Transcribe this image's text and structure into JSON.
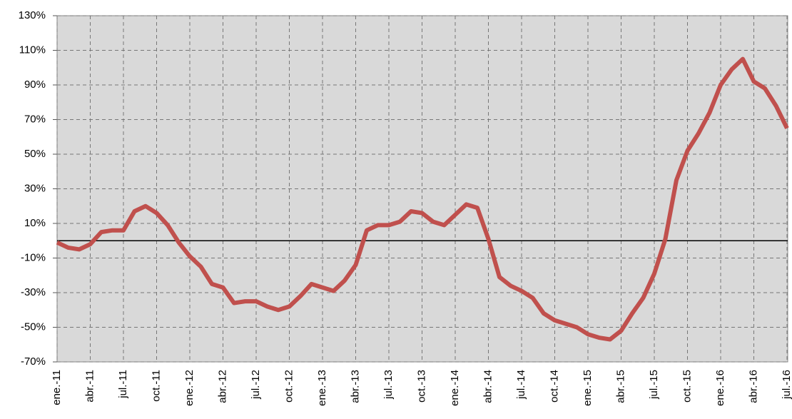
{
  "chart_data": {
    "type": "line",
    "categories": [
      "ene.-11",
      null,
      null,
      "abr.-11",
      null,
      null,
      "jul.-11",
      null,
      null,
      "oct.-11",
      null,
      null,
      "ene.-12",
      null,
      null,
      "abr.-12",
      null,
      null,
      "jul.-12",
      null,
      null,
      "oct.-12",
      null,
      null,
      "ene.-13",
      null,
      null,
      "abr.-13",
      null,
      null,
      "jul.-13",
      null,
      null,
      "oct.-13",
      null,
      null,
      "ene.-14",
      null,
      null,
      "abr.-14",
      null,
      null,
      "jul.-14",
      null,
      null,
      "oct.-14",
      null,
      null,
      "ene.-15",
      null,
      null,
      "abr.-15",
      null,
      null,
      "jul.-15",
      null,
      null,
      "oct.-15",
      null,
      null,
      "ene.-16",
      null,
      null,
      "abr.-16",
      null,
      null,
      "jul.-16"
    ],
    "series": [
      {
        "color": "#c0504d",
        "values": [
          -1,
          -4,
          -5,
          -2,
          5,
          6,
          6,
          17,
          20,
          16,
          9,
          -1,
          -9,
          -15,
          -25,
          -27,
          -36,
          -35,
          -35,
          -38,
          -40,
          -38,
          -32,
          -25,
          -27,
          -29,
          -23,
          -14,
          6,
          9,
          9,
          11,
          17,
          16,
          11,
          9,
          15,
          21,
          19,
          1,
          -21,
          -26,
          -29,
          -33,
          -42,
          -46,
          -48,
          -50,
          -54,
          -56,
          -57,
          -52,
          -42,
          -33,
          -19,
          1,
          35,
          52,
          62,
          74,
          90,
          99,
          105,
          92,
          88,
          78,
          65
        ]
      }
    ],
    "ylim": [
      -70,
      130
    ],
    "yticks": [
      {
        "value": -70,
        "label": "-70%"
      },
      {
        "value": -50,
        "label": "-50%"
      },
      {
        "value": -30,
        "label": "-30%"
      },
      {
        "value": -10,
        "label": "-10%"
      },
      {
        "value": 10,
        "label": "10%"
      },
      {
        "value": 30,
        "label": "30%"
      },
      {
        "value": 50,
        "label": "50%"
      },
      {
        "value": 70,
        "label": "70%"
      },
      {
        "value": 90,
        "label": "90%"
      },
      {
        "value": 110,
        "label": "110%"
      },
      {
        "value": 130,
        "label": "130%"
      }
    ],
    "grid": true
  }
}
